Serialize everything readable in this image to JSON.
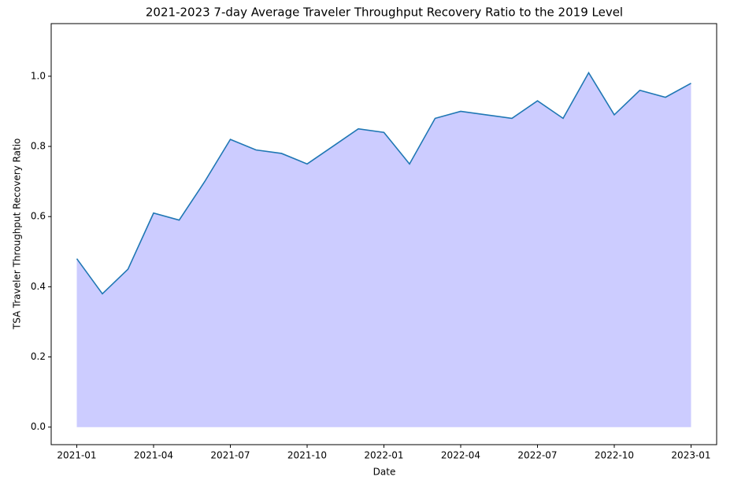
{
  "chart_data": {
    "type": "area",
    "title": "2021-2023 7-day Average Traveler Throughput Recovery Ratio to the 2019 Level",
    "xlabel": "Date",
    "ylabel": "TSA Traveler Throughput Recovery Ratio",
    "x": [
      "2021-01",
      "2021-02",
      "2021-03",
      "2021-04",
      "2021-05",
      "2021-06",
      "2021-07",
      "2021-08",
      "2021-09",
      "2021-10",
      "2021-11",
      "2021-12",
      "2022-01",
      "2022-02",
      "2022-03",
      "2022-04",
      "2022-05",
      "2022-06",
      "2022-07",
      "2022-08",
      "2022-09",
      "2022-10",
      "2022-11",
      "2022-12",
      "2023-01"
    ],
    "values": [
      0.48,
      0.38,
      0.45,
      0.61,
      0.59,
      0.7,
      0.82,
      0.79,
      0.78,
      0.75,
      0.8,
      0.85,
      0.84,
      0.75,
      0.88,
      0.9,
      0.89,
      0.88,
      0.93,
      0.88,
      1.01,
      0.89,
      0.96,
      0.94,
      0.98
    ],
    "color": "#1f77b4",
    "fill_color": "#ccccff",
    "xlim": [
      "2020-12",
      "2023-02"
    ],
    "xticks": [
      "2021-01",
      "2021-04",
      "2021-07",
      "2021-10",
      "2022-01",
      "2022-04",
      "2022-07",
      "2022-10",
      "2023-01"
    ],
    "ylim": [
      -0.05,
      1.15
    ],
    "yticks": [
      {
        "value": 0,
        "label": "0.0"
      },
      0.2,
      0.4,
      0.6,
      0.8,
      {
        "value": 1,
        "label": "1.0"
      }
    ]
  }
}
